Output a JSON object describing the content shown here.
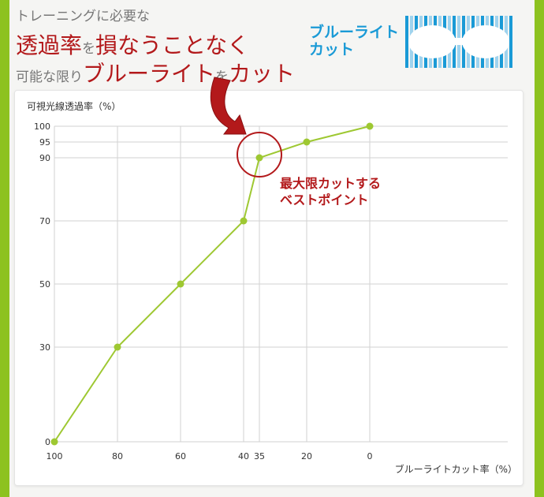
{
  "header": {
    "line1": "トレーニングに必要な",
    "line2_a": "透過率",
    "line2_b": "を",
    "line2_c": "損なうことなく",
    "line3_a": "可能な限り",
    "line3_b": "ブルーライト",
    "line3_c": "を",
    "line3_d": "カット"
  },
  "logo": {
    "line1": "ブルーライト",
    "line2": "カット",
    "icon": "glasses-icon"
  },
  "colors": {
    "accent_green": "#8dc21f",
    "line_green": "#9ec832",
    "highlight_red": "#b3191b",
    "logo_blue": "#1a9ad6"
  },
  "chart_data": {
    "type": "line",
    "ylabel": "可視光線透過率（%）",
    "xlabel": "ブルーライトカット率（%）",
    "x_axis_reversed": true,
    "xlim": [
      100,
      0
    ],
    "ylim": [
      0,
      100
    ],
    "x_ticks": [
      "100",
      "80",
      "60",
      "40",
      "35",
      "20",
      "0"
    ],
    "y_ticks": [
      "0",
      "30",
      "50",
      "70",
      "90",
      "95",
      "100"
    ],
    "grid": true,
    "series": [
      {
        "x": [
          100,
          80,
          60,
          40,
          35,
          20,
          0
        ],
        "y": [
          0,
          30,
          50,
          70,
          90,
          95,
          100
        ]
      }
    ],
    "annotation": {
      "line1": "最大限カットする",
      "line2": "ベストポイント",
      "x": 35,
      "y": 90
    }
  }
}
